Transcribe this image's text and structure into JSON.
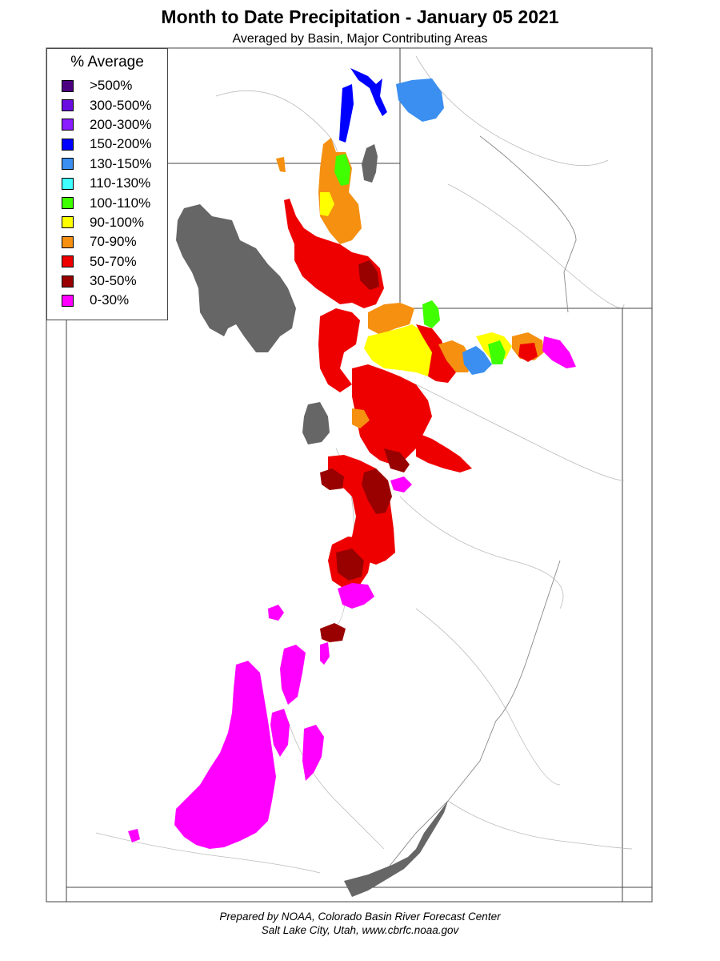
{
  "title": "Month to Date Precipitation - January 05 2021",
  "subtitle": "Averaged by Basin, Major Contributing Areas",
  "legend": {
    "title": "% Average",
    "items": [
      {
        "label": ">500%",
        "color": "#4b0082"
      },
      {
        "label": "300-500%",
        "color": "#6a0de0"
      },
      {
        "label": "200-300%",
        "color": "#8b1cff"
      },
      {
        "label": "150-200%",
        "color": "#0000ff"
      },
      {
        "label": "130-150%",
        "color": "#3a8ff0"
      },
      {
        "label": "110-130%",
        "color": "#40ffff"
      },
      {
        "label": "100-110%",
        "color": "#40ff00"
      },
      {
        "label": "90-100%",
        "color": "#ffff00"
      },
      {
        "label": "70-90%",
        "color": "#f59010"
      },
      {
        "label": "50-70%",
        "color": "#ee0000"
      },
      {
        "label": "30-50%",
        "color": "#990000"
      },
      {
        "label": "0-30%",
        "color": "#ff00ff"
      }
    ]
  },
  "lake_color": "#666666",
  "footer": {
    "line1": "Prepared by NOAA, Colorado Basin River Forecast Center",
    "line2": "Salt Lake City, Utah, www.cbrfc.noaa.gov"
  }
}
